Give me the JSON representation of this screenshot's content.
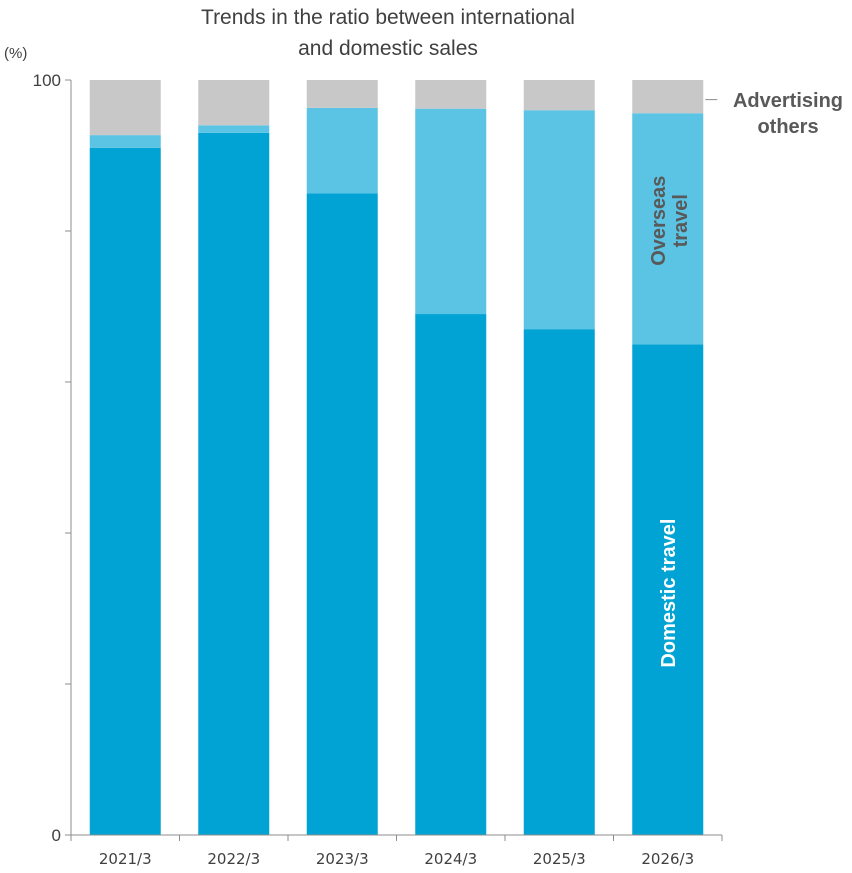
{
  "chart_data": {
    "type": "bar",
    "stacked": true,
    "title_lines": [
      "Trends in the ratio between international",
      "and domestic sales"
    ],
    "unit_label": "(%)",
    "ylim": [
      0,
      100
    ],
    "yticks": [
      0,
      20,
      40,
      60,
      80,
      100
    ],
    "ytick_labels": [
      "0",
      "",
      "",
      "",
      "",
      "100"
    ],
    "categories": [
      "2021/3",
      "2022/3",
      "2023/3",
      "2024/3",
      "2025/3",
      "2026/3"
    ],
    "series": [
      {
        "name": "Domestic travel",
        "color": "#00A3D4",
        "values": [
          91,
          93,
          85,
          69,
          67,
          65
        ]
      },
      {
        "name": "Overseas travel",
        "color": "#5BC3E3",
        "values": [
          1.7,
          1,
          11.3,
          27.2,
          29,
          30.6
        ]
      },
      {
        "name": "Advertising others",
        "color": "#C8C8C8",
        "values": [
          7.3,
          6,
          3.7,
          3.8,
          4,
          4.4
        ]
      }
    ],
    "labels": {
      "side_label_lines": [
        "Advertising",
        "others"
      ],
      "overseas_lines": [
        "Overseas",
        "travel"
      ],
      "domestic": "Domestic travel"
    }
  }
}
